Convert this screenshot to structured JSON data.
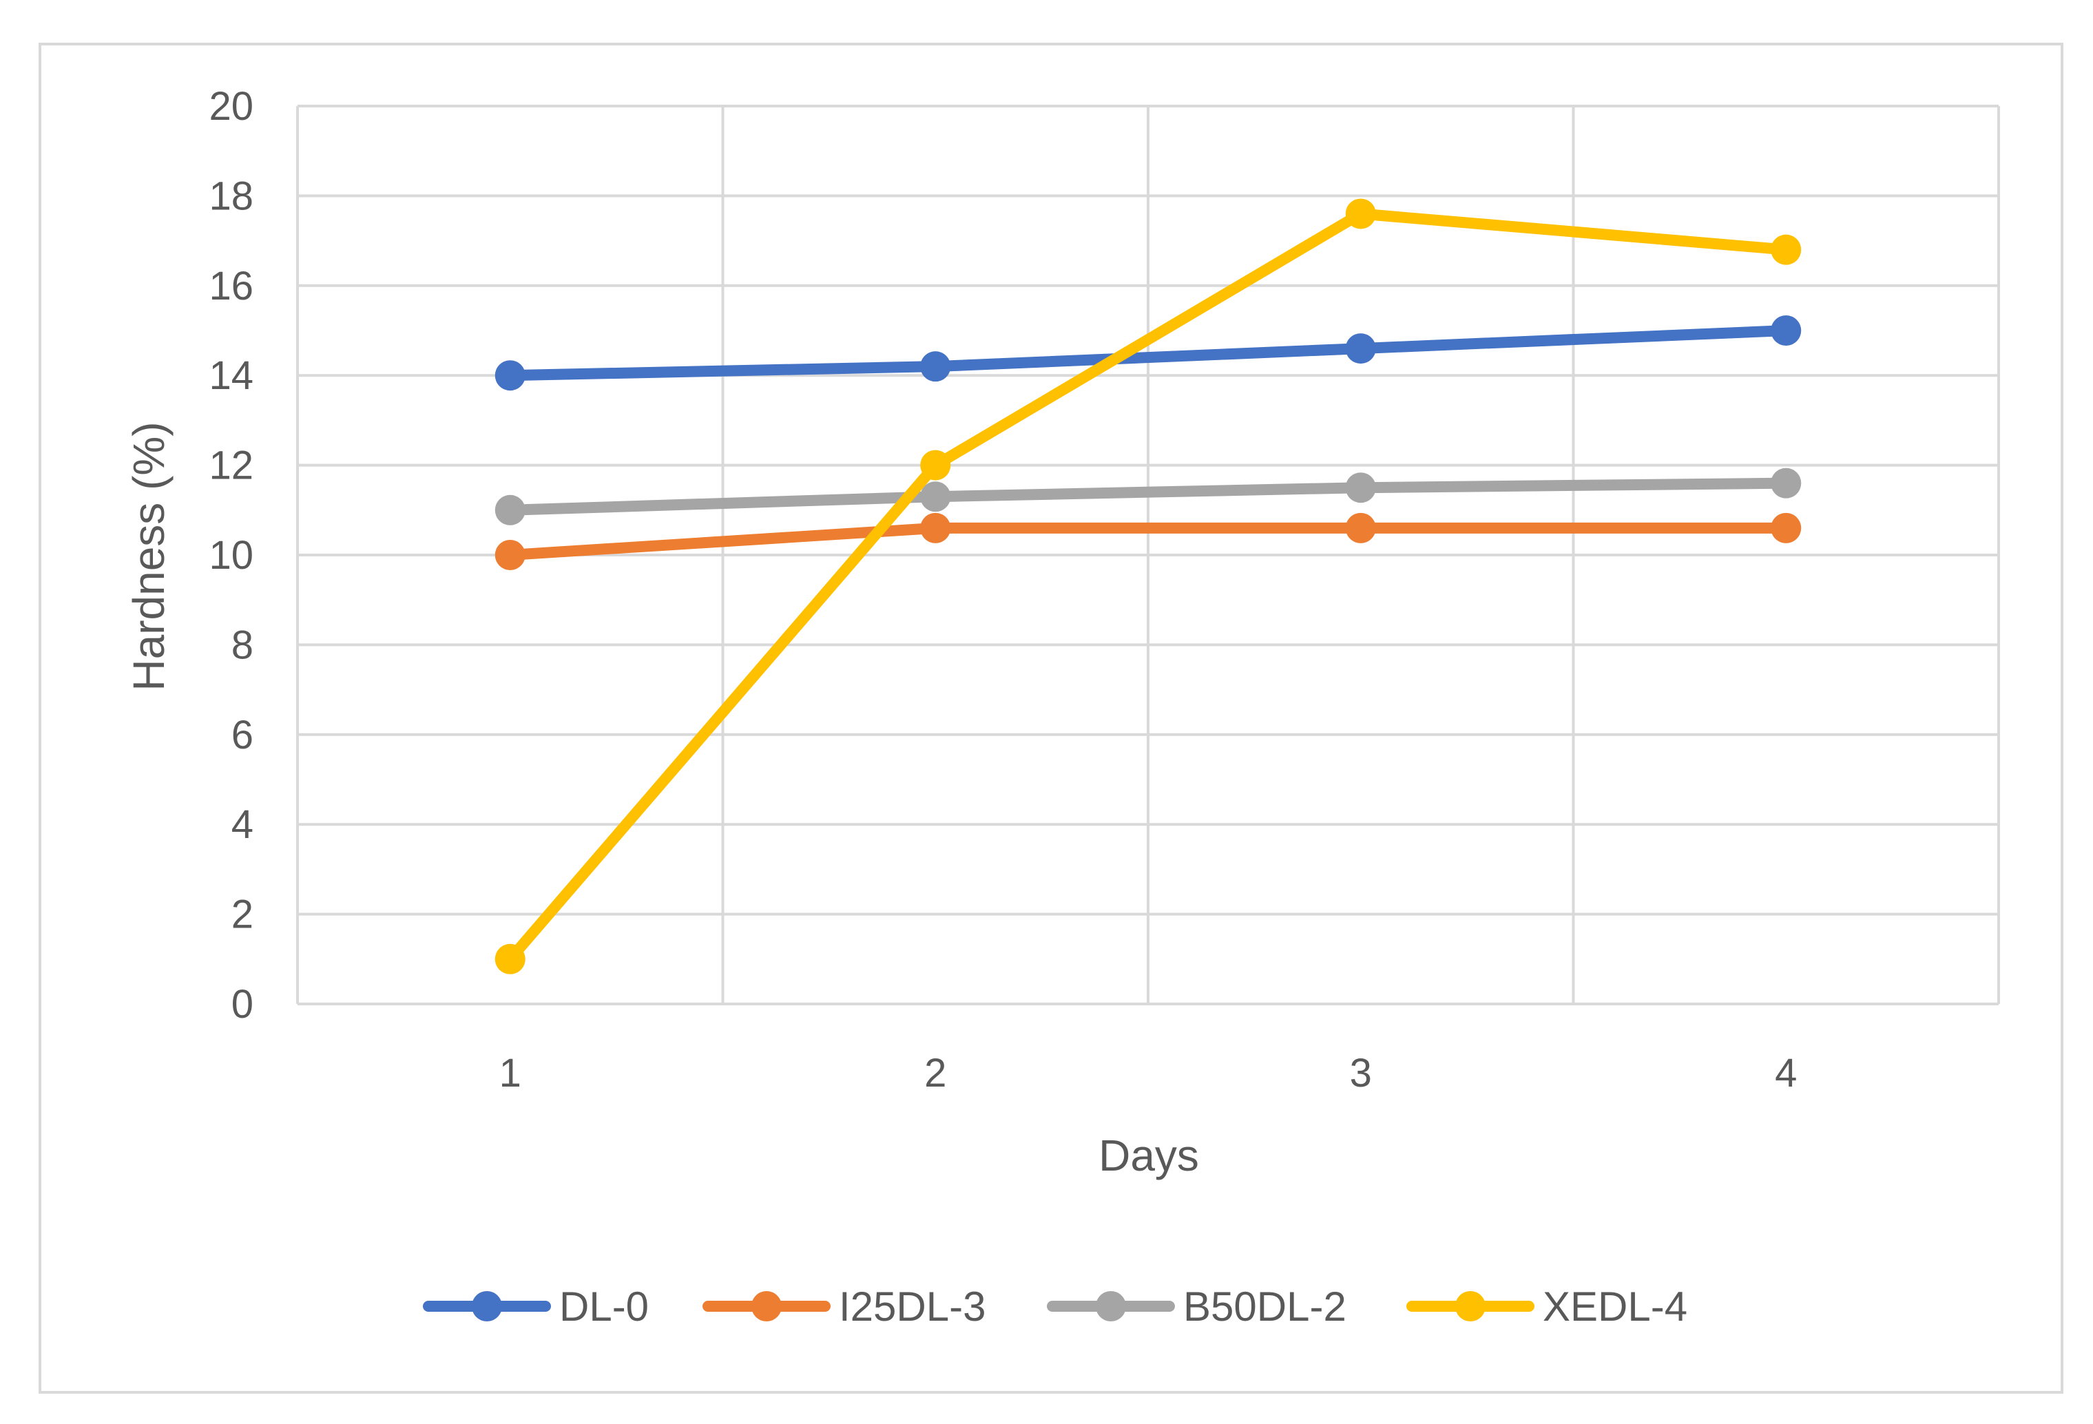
{
  "chart_data": {
    "type": "line",
    "title": "",
    "xlabel": "Days",
    "ylabel": "Hardness (%)",
    "categories": [
      "1",
      "2",
      "3",
      "4"
    ],
    "ylim": [
      0,
      20
    ],
    "yticks": [
      "0",
      "2",
      "4",
      "6",
      "8",
      "10",
      "12",
      "14",
      "16",
      "18",
      "20"
    ],
    "grid": true,
    "legend_position": "bottom",
    "series": [
      {
        "name": "DL-0",
        "color": "#4472c4",
        "values": [
          14.0,
          14.2,
          14.6,
          15.0
        ]
      },
      {
        "name": "I25DL-3",
        "color": "#ed7d31",
        "values": [
          10.0,
          10.6,
          10.6,
          10.6
        ]
      },
      {
        "name": "B50DL-2",
        "color": "#a5a5a5",
        "values": [
          11.0,
          11.3,
          11.5,
          11.6
        ]
      },
      {
        "name": "XEDL-4",
        "color": "#ffc000",
        "values": [
          1.0,
          12.0,
          17.6,
          16.8
        ]
      }
    ]
  }
}
